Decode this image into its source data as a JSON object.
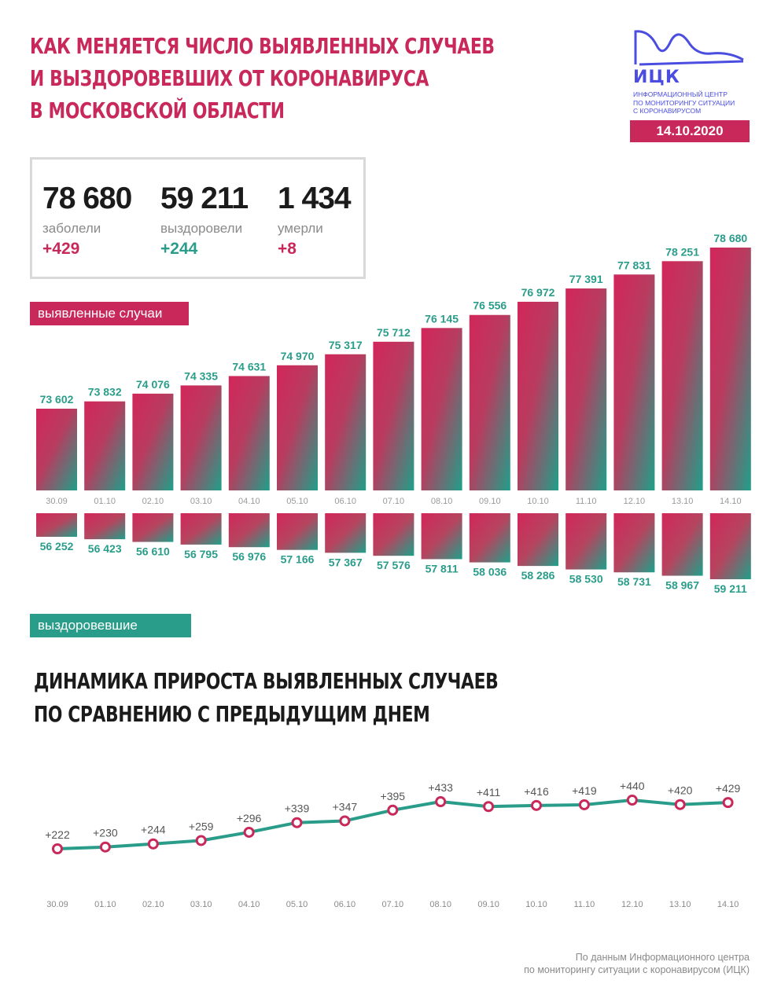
{
  "header": {
    "title_lines": [
      "КАК МЕНЯЕТСЯ ЧИСЛО ВЫЯВЛЕННЫХ СЛУЧАЕВ",
      "И ВЫЗДОРОВЕВШИХ ОТ КОРОНАВИРУСА",
      "В МОСКОВСКОЙ ОБЛАСТИ"
    ],
    "logo_abbr": "ИЦК",
    "logo_desc": [
      "ИНФОРМАЦИОННЫЙ ЦЕНТР",
      "ПО МОНИТОРИНГУ СИТУАЦИИ",
      "С КОРОНАВИРУСОМ"
    ],
    "date": "14.10.2020"
  },
  "summary": [
    {
      "total": "78 680",
      "label": "заболели",
      "delta": "+429",
      "color": "#c8295a"
    },
    {
      "total": "59 211",
      "label": "выздоровели",
      "delta": "+244",
      "color": "#2a9d8a"
    },
    {
      "total": "1 434",
      "label": "умерли",
      "delta": "+8",
      "color": "#c8295a"
    }
  ],
  "legend": {
    "cases": "выявленные случаи",
    "recovered": "выздоровевшие"
  },
  "colors": {
    "pink": "#c8295a",
    "teal": "#2a9d8a",
    "gray": "#8a8a8a"
  },
  "chart_data": [
    {
      "type": "bar",
      "categories": [
        "30.09",
        "01.10",
        "02.10",
        "03.10",
        "04.10",
        "05.10",
        "06.10",
        "07.10",
        "08.10",
        "09.10",
        "10.10",
        "11.10",
        "12.10",
        "13.10",
        "14.10"
      ],
      "series": [
        {
          "name": "выявленные случаи",
          "values": [
            73602,
            73832,
            74076,
            74335,
            74631,
            74970,
            75317,
            75712,
            76145,
            76556,
            76972,
            77391,
            77831,
            78251,
            78680
          ],
          "labels": [
            "73 602",
            "73 832",
            "74 076",
            "74 335",
            "74 631",
            "74 970",
            "75 317",
            "75 712",
            "76 145",
            "76 556",
            "76 972",
            "77 391",
            "77 831",
            "78 251",
            "78 680"
          ]
        },
        {
          "name": "выздоровевшие",
          "values": [
            56252,
            56423,
            56610,
            56795,
            56976,
            57166,
            57367,
            57576,
            57811,
            58036,
            58286,
            58530,
            58731,
            58967,
            59211
          ],
          "labels": [
            "56 252",
            "56 423",
            "56 610",
            "56 795",
            "56 976",
            "57 166",
            "57 367",
            "57 576",
            "57 811",
            "58 036",
            "58 286",
            "58 530",
            "58 731",
            "58 967",
            "59 211"
          ]
        }
      ]
    },
    {
      "type": "line",
      "title": "ДИНАМИКА ПРИРОСТА ВЫЯВЛЕННЫХ СЛУЧАЕВ ПО СРАВНЕНИЮ С ПРЕДЫДУЩИМ ДНЕМ",
      "categories": [
        "30.09",
        "01.10",
        "02.10",
        "03.10",
        "04.10",
        "05.10",
        "06.10",
        "07.10",
        "08.10",
        "09.10",
        "10.10",
        "11.10",
        "12.10",
        "13.10",
        "14.10"
      ],
      "values": [
        222,
        230,
        244,
        259,
        296,
        339,
        347,
        395,
        433,
        411,
        416,
        419,
        440,
        420,
        429
      ],
      "labels": [
        "+222",
        "+230",
        "+244",
        "+259",
        "+296",
        "+339",
        "+347",
        "+395",
        "+433",
        "+411",
        "+416",
        "+419",
        "+440",
        "+420",
        "+429"
      ]
    }
  ],
  "subheading_lines": [
    "ДИНАМИКА ПРИРОСТА ВЫЯВЛЕННЫХ СЛУЧАЕВ",
    "ПО СРАВНЕНИЮ С ПРЕДЫДУЩИМ ДНЕМ"
  ],
  "source_lines": [
    "По данным Информационного центра",
    "по мониторингу ситуации с коронавирусом (ИЦК)"
  ]
}
